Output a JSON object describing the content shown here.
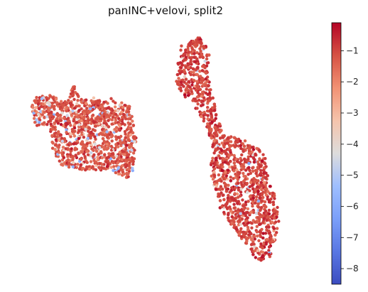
{
  "chart_data": {
    "type": "scatter",
    "title": "panINC+velovi, split2",
    "xlabel": "",
    "ylabel": "",
    "axes_visible": false,
    "colormap": "coolwarm",
    "color_range": [
      -8.5,
      -0.1
    ],
    "colorbar": {
      "position": "right",
      "ticks": [
        -1,
        -2,
        -3,
        -4,
        -5,
        -6,
        -7,
        -8
      ],
      "tick_labels": [
        "−1",
        "−2",
        "−3",
        "−4",
        "−5",
        "−6",
        "−7",
        "−8"
      ]
    },
    "clusters": [
      {
        "name": "",
        "shape": [
          [
            0.05,
            0.28
          ],
          [
            0.1,
            0.27
          ],
          [
            0.16,
            0.3
          ],
          [
            0.18,
            0.21
          ],
          [
            0.2,
            0.29
          ],
          [
            0.27,
            0.28
          ],
          [
            0.33,
            0.29
          ],
          [
            0.37,
            0.32
          ],
          [
            0.39,
            0.44
          ],
          [
            0.38,
            0.59
          ],
          [
            0.36,
            0.61
          ],
          [
            0.3,
            0.58
          ],
          [
            0.22,
            0.58
          ],
          [
            0.14,
            0.56
          ],
          [
            0.11,
            0.5
          ],
          [
            0.1,
            0.4
          ],
          [
            0.05,
            0.4
          ],
          [
            0.04,
            0.32
          ]
        ],
        "points": 1100,
        "value_mean": -1.2,
        "low_value_fraction": 0.12
      },
      {
        "name": "",
        "shape": [
          [
            0.54,
            0.07
          ],
          [
            0.6,
            0.03
          ],
          [
            0.64,
            0.1
          ],
          [
            0.63,
            0.18
          ],
          [
            0.65,
            0.3
          ],
          [
            0.68,
            0.43
          ],
          [
            0.76,
            0.46
          ],
          [
            0.82,
            0.5
          ],
          [
            0.83,
            0.6
          ],
          [
            0.86,
            0.7
          ],
          [
            0.87,
            0.8
          ],
          [
            0.84,
            0.93
          ],
          [
            0.8,
            0.95
          ],
          [
            0.74,
            0.86
          ],
          [
            0.67,
            0.74
          ],
          [
            0.64,
            0.6
          ],
          [
            0.64,
            0.46
          ],
          [
            0.6,
            0.34
          ],
          [
            0.54,
            0.27
          ],
          [
            0.52,
            0.2
          ]
        ],
        "points": 1500,
        "value_mean": -1.0,
        "low_value_fraction": 0.06
      }
    ]
  }
}
